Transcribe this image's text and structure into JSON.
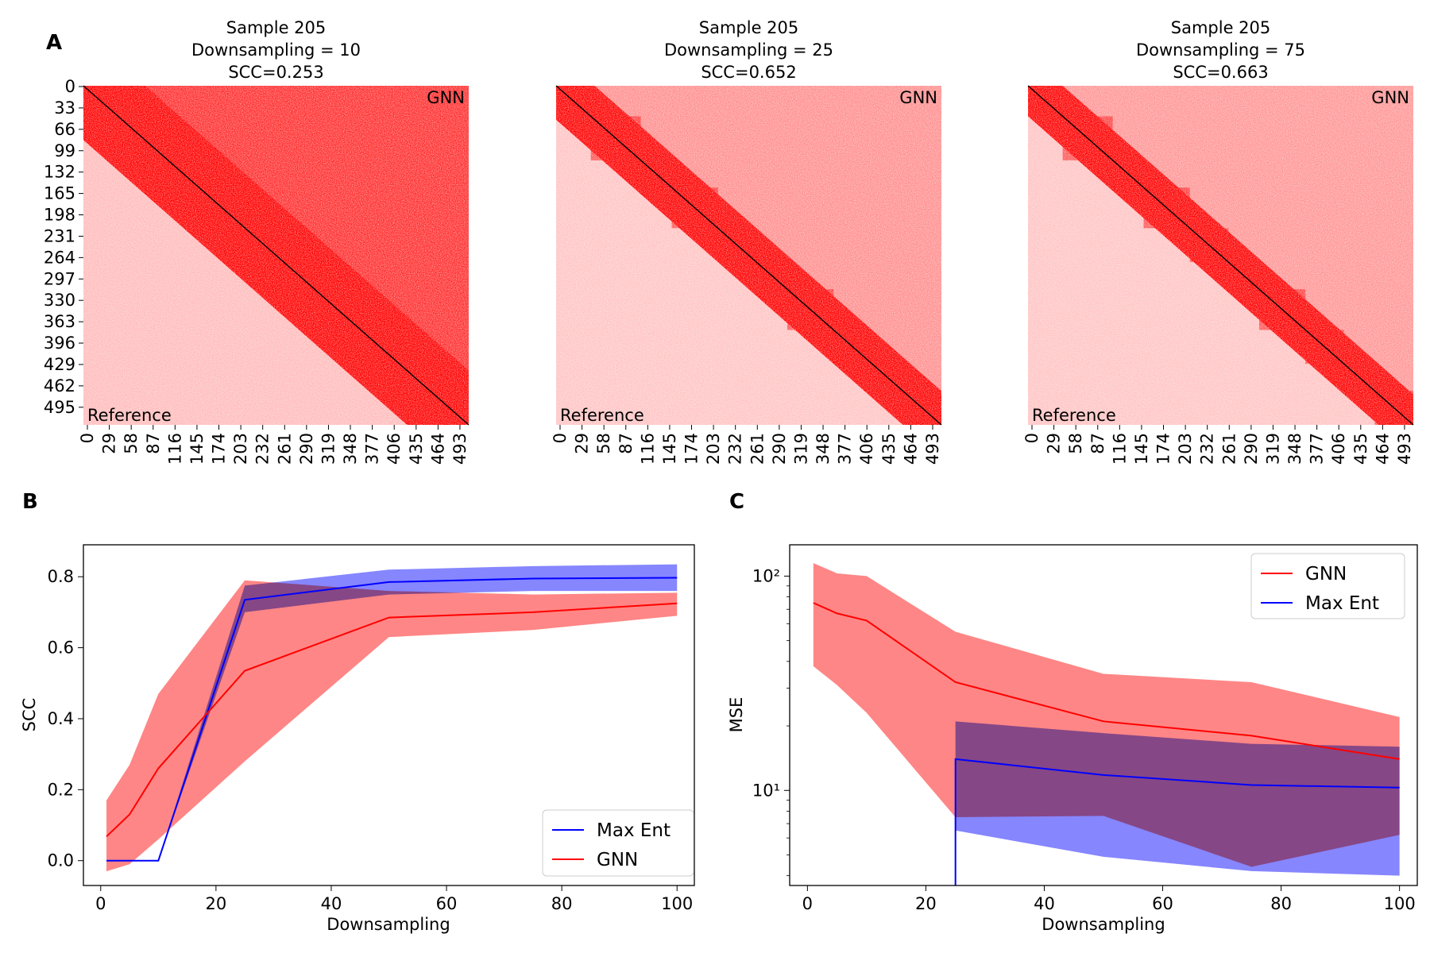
{
  "panels": {
    "A": "A",
    "B": "B",
    "C": "C"
  },
  "colors": {
    "gnn": "#ff0000",
    "maxent": "#0000ff",
    "gnn_band": "#ff8080",
    "maxent_band": "#7f7fff",
    "overlap": "#8a3cc9",
    "diagonal": "#000000"
  },
  "heatmaps": [
    {
      "title_line1": "Sample 205",
      "title_line2": "Downsampling = 10",
      "title_line3": "SCC=0.253",
      "upper_label": "GNN",
      "lower_label": "Reference",
      "upper_fill": 0.75,
      "lower_fill": 0.18,
      "diag_width": 0.16
    },
    {
      "title_line1": "Sample 205",
      "title_line2": "Downsampling = 25",
      "title_line3": "SCC=0.652",
      "upper_label": "GNN",
      "lower_label": "Reference",
      "upper_fill": 0.22,
      "lower_fill": 0.14,
      "diag_width": 0.1
    },
    {
      "title_line1": "Sample 205",
      "title_line2": "Downsampling = 75",
      "title_line3": "SCC=0.663",
      "upper_label": "GNN",
      "lower_label": "Reference",
      "upper_fill": 0.18,
      "lower_fill": 0.13,
      "diag_width": 0.09
    }
  ],
  "heatmap_yticks": [
    "0",
    "33",
    "66",
    "99",
    "132",
    "165",
    "198",
    "231",
    "264",
    "297",
    "330",
    "363",
    "396",
    "429",
    "462",
    "495"
  ],
  "heatmap_xticks": [
    "0",
    "29",
    "58",
    "87",
    "116",
    "145",
    "174",
    "203",
    "232",
    "261",
    "290",
    "319",
    "348",
    "377",
    "406",
    "435",
    "464",
    "493"
  ],
  "chart_data": [
    {
      "type": "line",
      "panel": "B",
      "xlabel": "Downsampling",
      "ylabel": "SCC",
      "xlim": [
        -3,
        103
      ],
      "ylim": [
        -0.07,
        0.89
      ],
      "xticks": [
        0,
        20,
        40,
        60,
        80,
        100
      ],
      "yticks": [
        0.0,
        0.2,
        0.4,
        0.6,
        0.8
      ],
      "ytick_labels": [
        "0.0",
        "0.2",
        "0.4",
        "0.6",
        "0.8"
      ],
      "legend_position": "lower right",
      "series": [
        {
          "name": "Max Ent",
          "color": "#0000ff",
          "x": [
            1,
            5,
            10,
            25,
            50,
            75,
            100
          ],
          "y": [
            0.0,
            0.0,
            0.0,
            0.735,
            0.785,
            0.795,
            0.797
          ],
          "lower": [
            0.0,
            0.0,
            0.0,
            0.7,
            0.75,
            0.76,
            0.76
          ],
          "upper": [
            0.0,
            0.0,
            0.0,
            0.775,
            0.82,
            0.83,
            0.835
          ]
        },
        {
          "name": "GNN",
          "color": "#ff0000",
          "x": [
            1,
            5,
            10,
            25,
            50,
            75,
            100
          ],
          "y": [
            0.068,
            0.13,
            0.26,
            0.535,
            0.685,
            0.7,
            0.725
          ],
          "lower": [
            -0.03,
            -0.01,
            0.06,
            0.28,
            0.63,
            0.65,
            0.69
          ],
          "upper": [
            0.17,
            0.27,
            0.47,
            0.79,
            0.76,
            0.75,
            0.755
          ]
        }
      ]
    },
    {
      "type": "line",
      "panel": "C",
      "xlabel": "Downsampling",
      "ylabel": "MSE",
      "scale_y": "log",
      "xlim": [
        -3,
        103
      ],
      "ylim": [
        3.6,
        140
      ],
      "xticks": [
        0,
        20,
        40,
        60,
        80,
        100
      ],
      "yticks": [
        10,
        100
      ],
      "ytick_labels": [
        "10¹",
        "10²"
      ],
      "legend_position": "upper right",
      "series": [
        {
          "name": "GNN",
          "color": "#ff0000",
          "x": [
            1,
            5,
            10,
            25,
            50,
            75,
            100
          ],
          "y": [
            75,
            67,
            62,
            32,
            21,
            18,
            14
          ],
          "lower": [
            38,
            31,
            23,
            7.5,
            7.6,
            4.4,
            6.2
          ],
          "upper": [
            115,
            103,
            100,
            55,
            35,
            32,
            22
          ]
        },
        {
          "name": "Max Ent",
          "color": "#0000ff",
          "x": [
            25,
            50,
            75,
            100
          ],
          "y": [
            14,
            11.8,
            10.6,
            10.3
          ],
          "lower": [
            6.5,
            4.9,
            4.2,
            4.0
          ],
          "upper": [
            21,
            18.5,
            16.5,
            16
          ]
        }
      ]
    }
  ]
}
